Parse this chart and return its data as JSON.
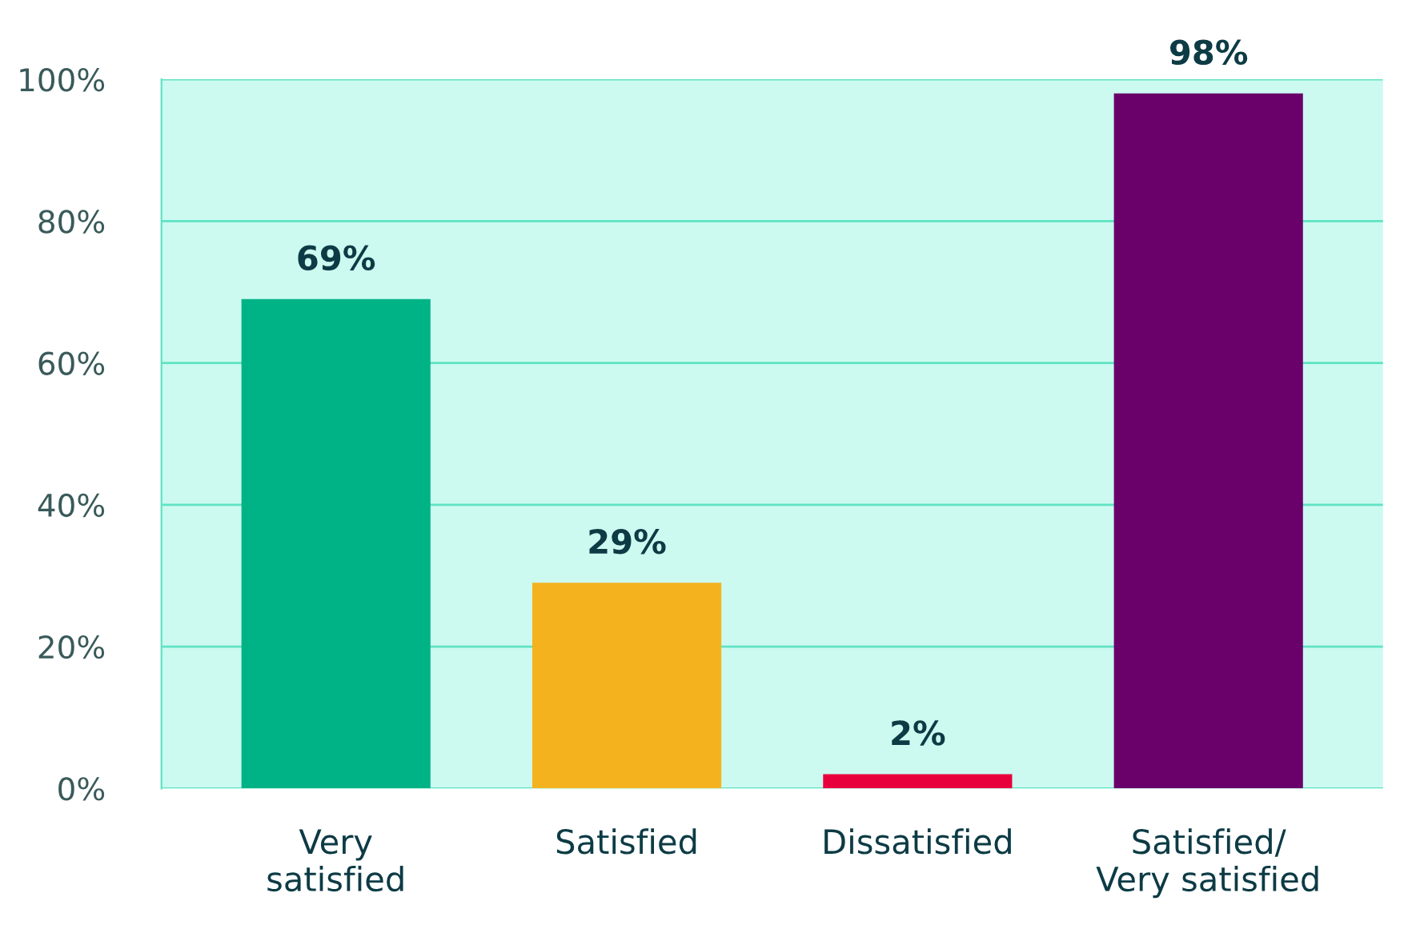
{
  "chart_data": {
    "type": "bar",
    "categories": [
      "Very\nsatisfied",
      "Satisfied",
      "Dissatisfied",
      "Satisfied/\nVery satisfied"
    ],
    "values": [
      69,
      29,
      2,
      98
    ],
    "colors": [
      "#00b386",
      "#f5b21f",
      "#e8003d",
      "#6a006a"
    ],
    "value_labels": [
      "69%",
      "29%",
      "2%",
      "98%"
    ],
    "ylim": [
      0,
      100
    ],
    "yticks": [
      {
        "value": 0,
        "label": "0%"
      },
      {
        "value": 20,
        "label": "20%"
      },
      {
        "value": 40,
        "label": "40%"
      },
      {
        "value": 60,
        "label": "60%"
      },
      {
        "value": 80,
        "label": "80%"
      },
      {
        "value": 100,
        "label": "100%"
      }
    ],
    "grid": "y"
  }
}
